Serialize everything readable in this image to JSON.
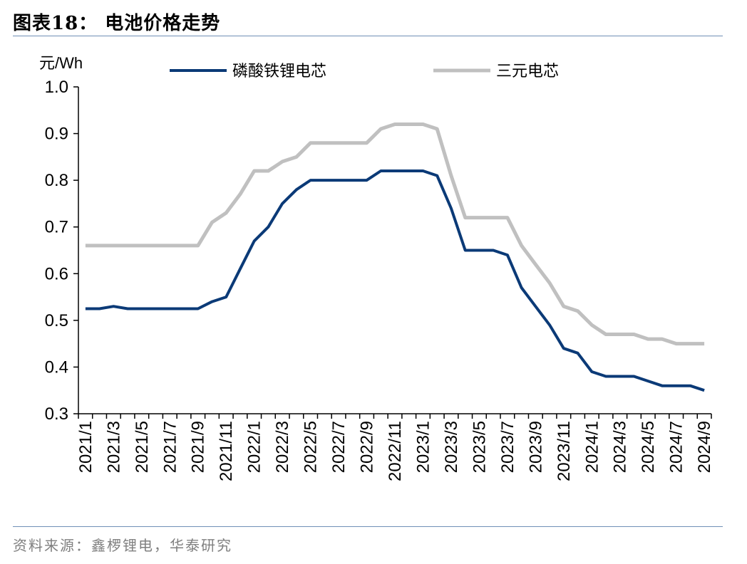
{
  "figure": {
    "title": "图表18：  电池价格走势",
    "source": "资料来源：鑫椤锂电，华泰研究"
  },
  "colors": {
    "lfp": "#0b3a77",
    "ncm": "#c0c0c0",
    "rule": "#6f8fb6"
  },
  "chart_data": {
    "type": "line",
    "ylabel": "元/Wh",
    "ylim": [
      0.3,
      1.0
    ],
    "yticks": [
      "1.0",
      "0.9",
      "0.8",
      "0.7",
      "0.6",
      "0.5",
      "0.4",
      "0.3"
    ],
    "x_tick_labels": [
      "2021/1",
      "2021/3",
      "2021/5",
      "2021/7",
      "2021/9",
      "2021/11",
      "2022/1",
      "2022/3",
      "2022/5",
      "2022/7",
      "2022/9",
      "2022/11",
      "2023/1",
      "2023/3",
      "2023/5",
      "2023/7",
      "2023/9",
      "2023/11",
      "2024/1",
      "2024/3",
      "2024/5",
      "2024/7",
      "2024/9"
    ],
    "x": [
      "2021/1",
      "2021/2",
      "2021/3",
      "2021/4",
      "2021/5",
      "2021/6",
      "2021/7",
      "2021/8",
      "2021/9",
      "2021/10",
      "2021/11",
      "2021/12",
      "2022/1",
      "2022/2",
      "2022/3",
      "2022/4",
      "2022/5",
      "2022/6",
      "2022/7",
      "2022/8",
      "2022/9",
      "2022/10",
      "2022/11",
      "2022/12",
      "2023/1",
      "2023/2",
      "2023/3",
      "2023/4",
      "2023/5",
      "2023/6",
      "2023/7",
      "2023/8",
      "2023/9",
      "2023/10",
      "2023/11",
      "2023/12",
      "2024/1",
      "2024/2",
      "2024/3",
      "2024/4",
      "2024/5",
      "2024/6",
      "2024/7",
      "2024/8",
      "2024/9"
    ],
    "series": [
      {
        "name": "磷酸铁锂电芯",
        "values": [
          0.525,
          0.525,
          0.53,
          0.525,
          0.525,
          0.525,
          0.525,
          0.525,
          0.525,
          0.54,
          0.55,
          0.61,
          0.67,
          0.7,
          0.75,
          0.78,
          0.8,
          0.8,
          0.8,
          0.8,
          0.8,
          0.82,
          0.82,
          0.82,
          0.82,
          0.81,
          0.74,
          0.65,
          0.65,
          0.65,
          0.64,
          0.57,
          0.53,
          0.49,
          0.44,
          0.43,
          0.39,
          0.38,
          0.38,
          0.38,
          0.37,
          0.36,
          0.36,
          0.36,
          0.35
        ]
      },
      {
        "name": "三元电芯",
        "values": [
          0.66,
          0.66,
          0.66,
          0.66,
          0.66,
          0.66,
          0.66,
          0.66,
          0.66,
          0.71,
          0.73,
          0.77,
          0.82,
          0.82,
          0.84,
          0.85,
          0.88,
          0.88,
          0.88,
          0.88,
          0.88,
          0.91,
          0.92,
          0.92,
          0.92,
          0.91,
          0.81,
          0.72,
          0.72,
          0.72,
          0.72,
          0.66,
          0.62,
          0.58,
          0.53,
          0.52,
          0.49,
          0.47,
          0.47,
          0.47,
          0.46,
          0.46,
          0.45,
          0.45,
          0.45
        ]
      }
    ],
    "legend_position": "top",
    "grid": false
  }
}
